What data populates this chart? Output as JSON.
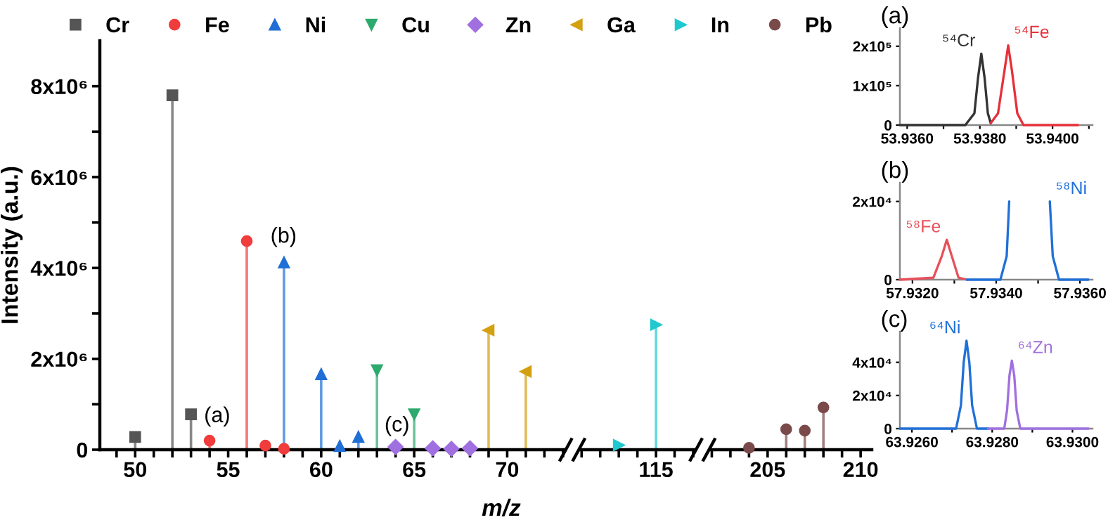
{
  "chart_data": [
    {
      "type": "lollipop",
      "xlabel": "m/z",
      "ylabel": "Intensity (a.u.)",
      "legend": "top",
      "categories": [
        null,
        "50",
        null,
        null,
        null,
        null,
        "55",
        null,
        null,
        null,
        null,
        "60",
        null,
        null,
        null,
        null,
        "65",
        null,
        null,
        null,
        null,
        "70",
        null,
        null,
        null,
        null,
        null,
        null,
        null,
        "115",
        null,
        null,
        null,
        null,
        null,
        "205",
        null,
        null,
        null,
        null,
        "210"
      ],
      "ylim": [
        0,
        9000000
      ],
      "yticks": [
        0,
        {
          "value": 1000000,
          "label": null
        },
        {
          "value": 2000000,
          "label": "2x10⁶"
        },
        {
          "value": 3000000,
          "label": null
        },
        {
          "value": 4000000,
          "label": "4x10⁶"
        },
        {
          "value": 5000000,
          "label": null
        },
        {
          "value": 6000000,
          "label": "6x10⁶"
        },
        {
          "value": 7000000,
          "label": null
        },
        {
          "value": 8000000,
          "label": "8x10⁶"
        }
      ],
      "annotations": [
        "(a)",
        "(b)",
        "(c)"
      ],
      "series": [
        {
          "name": "Cr",
          "color": "#555555",
          "marker": "square",
          "values": [
            null,
            280000,
            null,
            7800000,
            780000,
            null,
            null,
            null,
            null,
            null,
            null,
            null,
            null,
            null,
            null,
            null,
            null,
            null,
            null,
            null,
            null,
            null,
            null,
            null,
            null,
            null,
            null,
            null,
            null,
            null,
            null,
            null,
            null,
            null,
            null,
            null,
            null,
            null,
            null,
            null,
            null
          ]
        },
        {
          "name": "Fe",
          "color": "#f03c3c",
          "marker": "circle",
          "values": [
            null,
            null,
            null,
            null,
            null,
            200000,
            null,
            4590000,
            90000,
            20000,
            null,
            null,
            null,
            null,
            null,
            null,
            null,
            null,
            null,
            null,
            null,
            null,
            null,
            null,
            null,
            null,
            null,
            null,
            null,
            null,
            null,
            null,
            null,
            null,
            null,
            null,
            null,
            null,
            null,
            null,
            null
          ]
        },
        {
          "name": "Ni",
          "color": "#1f6fd6",
          "marker": "triangle",
          "values": [
            null,
            null,
            null,
            null,
            null,
            null,
            null,
            null,
            null,
            4120000,
            null,
            1660000,
            80000,
            280000,
            null,
            null,
            null,
            null,
            null,
            null,
            null,
            null,
            null,
            null,
            null,
            null,
            null,
            null,
            null,
            null,
            null,
            null,
            null,
            null,
            null,
            null,
            null,
            null,
            null,
            null,
            null
          ]
        },
        {
          "name": "Cu",
          "color": "#2eaa6e",
          "marker": "triangle-down",
          "values": [
            null,
            null,
            null,
            null,
            null,
            null,
            null,
            null,
            null,
            null,
            null,
            null,
            null,
            null,
            1750000,
            null,
            780000,
            null,
            null,
            null,
            null,
            null,
            null,
            null,
            null,
            null,
            null,
            null,
            null,
            null,
            null,
            null,
            null,
            null,
            null,
            null,
            null,
            null,
            null,
            null,
            null
          ]
        },
        {
          "name": "Zn",
          "color": "#a070e0",
          "marker": "diamond",
          "values": [
            null,
            null,
            null,
            null,
            null,
            null,
            null,
            null,
            null,
            null,
            null,
            null,
            null,
            null,
            null,
            60000,
            null,
            30000,
            20000,
            30000,
            null,
            null,
            null,
            null,
            null,
            null,
            null,
            null,
            null,
            null,
            null,
            null,
            null,
            null,
            null,
            null,
            null,
            null,
            null,
            null,
            null
          ]
        },
        {
          "name": "Ga",
          "color": "#d4a010",
          "marker": "triangle-left",
          "values": [
            null,
            null,
            null,
            null,
            null,
            null,
            null,
            null,
            null,
            null,
            null,
            null,
            null,
            null,
            null,
            null,
            null,
            null,
            null,
            null,
            2630000,
            null,
            1720000,
            null,
            null,
            null,
            null,
            null,
            null,
            null,
            null,
            null,
            null,
            null,
            null,
            null,
            null,
            null,
            null,
            null,
            null
          ]
        },
        {
          "name": "In",
          "color": "#20c8d0",
          "marker": "triangle-right",
          "values": [
            null,
            null,
            null,
            null,
            null,
            null,
            null,
            null,
            null,
            null,
            null,
            null,
            null,
            null,
            null,
            null,
            null,
            null,
            null,
            null,
            null,
            null,
            null,
            null,
            null,
            null,
            null,
            100000,
            null,
            2750000,
            null,
            null,
            null,
            null,
            null,
            null,
            null,
            null,
            null,
            null,
            null
          ]
        },
        {
          "name": "Pb",
          "color": "#7a4a4a",
          "marker": "circle",
          "values": [
            null,
            null,
            null,
            null,
            null,
            null,
            null,
            null,
            null,
            null,
            null,
            null,
            null,
            null,
            null,
            null,
            null,
            null,
            null,
            null,
            null,
            null,
            null,
            null,
            null,
            null,
            null,
            null,
            null,
            null,
            null,
            null,
            null,
            null,
            40000,
            null,
            450000,
            420000,
            930000,
            null,
            null
          ]
        }
      ]
    },
    {
      "type": "line",
      "title": "(a)",
      "xlim": [
        53.9358,
        53.9411
      ],
      "xticks": [
        {
          "value": 53.936,
          "label": "53.9360"
        },
        {
          "value": 53.937,
          "label": null
        },
        {
          "value": 53.938,
          "label": "53.9380"
        },
        {
          "value": 53.939,
          "label": null
        },
        {
          "value": 53.94,
          "label": "53.9400"
        },
        {
          "value": 53.941,
          "label": null
        }
      ],
      "ylim": [
        0,
        246000
      ],
      "yticks": [
        0,
        {
          "value": 100000,
          "label": "1x10⁵"
        },
        {
          "value": 200000,
          "label": "2x10⁵"
        }
      ],
      "series": [
        {
          "name": "⁵⁴Cr",
          "color": "#333333",
          "x": [
            53.9358,
            53.9376,
            53.93785,
            53.93795,
            53.93804,
            53.93813,
            53.93822,
            53.9383
          ],
          "values": [
            0,
            0,
            30000,
            120000,
            181000,
            120000,
            30000,
            5000
          ]
        },
        {
          "name": "⁵⁴Fe",
          "color": "#e8303a",
          "x": [
            53.9383,
            53.9385,
            53.93868,
            53.93878,
            53.93888,
            53.93903,
            53.9392,
            53.9407
          ],
          "values": [
            5000,
            30000,
            140000,
            202000,
            140000,
            30000,
            0,
            0
          ]
        }
      ]
    },
    {
      "type": "line",
      "title": "(b)",
      "xlim": [
        57.9317,
        57.9363
      ],
      "xticks": [
        {
          "value": 57.932,
          "label": "57.9320"
        },
        {
          "value": 57.933,
          "label": null
        },
        {
          "value": 57.934,
          "label": "57.9340"
        },
        {
          "value": 57.935,
          "label": null
        },
        {
          "value": 57.936,
          "label": "57.9360"
        }
      ],
      "ylim": [
        0,
        24800
      ],
      "yticks": [
        0,
        {
          "value": 20000,
          "label": "2x10⁴"
        }
      ],
      "series": [
        {
          "name": "⁵⁸Fe",
          "color": "#e8505a",
          "x": [
            57.9317,
            57.9325,
            57.9327,
            57.93282,
            57.93294,
            57.9331,
            57.9333
          ],
          "values": [
            0,
            500,
            6000,
            10200,
            6000,
            500,
            0
          ]
        },
        {
          "name": "⁵⁸Ni",
          "color": "#2070d8",
          "x": [
            57.9333,
            57.9341,
            57.93425,
            57.93431,
            57.9348,
            57.93528,
            57.93535,
            57.9355,
            57.9362
          ],
          "values": [
            0,
            0,
            6000,
            20000,
            null,
            20000,
            6000,
            0,
            0
          ]
        }
      ]
    },
    {
      "type": "line",
      "title": "(c)",
      "xlim": [
        63.9257,
        63.9305
      ],
      "xticks": [
        {
          "value": 63.926,
          "label": "63.9260"
        },
        {
          "value": 63.927,
          "label": null
        },
        {
          "value": 63.928,
          "label": "63.9280"
        },
        {
          "value": 63.929,
          "label": null
        },
        {
          "value": 63.93,
          "label": "63.9300"
        }
      ],
      "ylim": [
        0,
        58500
      ],
      "yticks": [
        0,
        {
          "value": 20000,
          "label": "2x10⁴"
        },
        {
          "value": 40000,
          "label": "4x10⁴"
        }
      ],
      "series": [
        {
          "name": "⁶⁴Ni",
          "color": "#2070d8",
          "x": [
            63.9257,
            63.9271,
            63.92722,
            63.92729,
            63.92736,
            63.92743,
            63.9275,
            63.92762,
            63.9279
          ],
          "values": [
            0,
            0,
            14000,
            40000,
            53000,
            40000,
            14000,
            0,
            0
          ]
        },
        {
          "name": "⁶⁴Zn",
          "color": "#a070e0",
          "x": [
            63.9279,
            63.9283,
            63.92837,
            63.92843,
            63.92849,
            63.92855,
            63.92861,
            63.9287,
            63.9304
          ],
          "values": [
            0,
            0,
            11000,
            32000,
            41000,
            32000,
            11000,
            0,
            0
          ]
        }
      ]
    }
  ]
}
